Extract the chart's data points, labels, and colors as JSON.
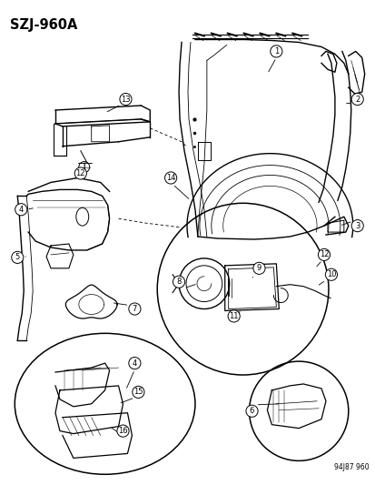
{
  "title": "SZJ-960A",
  "footer": "94J87 960",
  "bg_color": "#ffffff",
  "figsize": [
    4.14,
    5.33
  ],
  "dpi": 100,
  "num_circle_r": 0.016,
  "num_fontsize": 6.0,
  "title_fontsize": 10.5,
  "footer_fontsize": 5.5,
  "lw_main": 1.0,
  "lw_detail": 0.6,
  "lw_circle": 1.1
}
